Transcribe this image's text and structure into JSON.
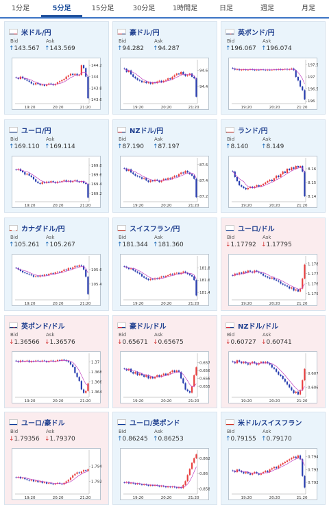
{
  "tabs": [
    {
      "label": "1分足",
      "active": false
    },
    {
      "label": "5分足",
      "active": true
    },
    {
      "label": "15分足",
      "active": false
    },
    {
      "label": "30分足",
      "active": false
    },
    {
      "label": "1時間足",
      "active": false
    },
    {
      "label": "日足",
      "active": false
    },
    {
      "label": "週足",
      "active": false
    },
    {
      "label": "月足",
      "active": false
    }
  ],
  "labels": {
    "bid": "Bid",
    "ask": "Ask"
  },
  "colors": {
    "up_bg": "#eaf4fb",
    "down_bg": "#fbecee",
    "bull": "#e84040",
    "bear": "#2a3fb0",
    "ma": "#c040c0",
    "name": "#1f3f8f"
  },
  "pairs": [
    {
      "name": "米ドル/円",
      "flag": "us",
      "dir": "up",
      "arrow": "↑",
      "bid": "143.567",
      "ask": "143.569",
      "chart_data": {
        "type": "candlestick",
        "x_ticks": [
          "19:20",
          "20:20",
          "21:20"
        ],
        "y_ticks": [
          "144.2",
          "144",
          "143.8",
          "143.6"
        ],
        "ylim": [
          143.55,
          144.25
        ],
        "closes": [
          143.98,
          143.96,
          144.0,
          143.97,
          143.95,
          143.93,
          143.91,
          143.88,
          143.86,
          143.89,
          143.87,
          143.85,
          143.86,
          143.84,
          143.86,
          143.88,
          143.87,
          143.85,
          143.87,
          143.9,
          143.92,
          143.94,
          143.96,
          144.0,
          144.02,
          144.05,
          144.03,
          144.05,
          144.02,
          144.03,
          144.2,
          144.15,
          144.0,
          143.62
        ]
      }
    },
    {
      "name": "豪ドル/円",
      "flag": "au",
      "dir": "up",
      "arrow": "↑",
      "bid": "94.282",
      "ask": "94.287",
      "chart_data": {
        "type": "candlestick",
        "x_ticks": [
          "19:20",
          "20:20",
          "21:20"
        ],
        "y_ticks": [
          "94.6",
          "94.4"
        ],
        "ylim": [
          94.2,
          94.7
        ],
        "closes": [
          94.62,
          94.58,
          94.6,
          94.55,
          94.52,
          94.5,
          94.48,
          94.47,
          94.45,
          94.46,
          94.44,
          94.45,
          94.43,
          94.45,
          94.44,
          94.46,
          94.47,
          94.45,
          94.47,
          94.48,
          94.5,
          94.49,
          94.52,
          94.54,
          94.56,
          94.55,
          94.58,
          94.55,
          94.53,
          94.54,
          94.56,
          94.52,
          94.5,
          94.27
        ]
      }
    },
    {
      "name": "英ポンド/円",
      "flag": "uk",
      "dir": "up",
      "arrow": "↑",
      "bid": "196.067",
      "ask": "196.074",
      "chart_data": {
        "type": "candlestick",
        "x_ticks": [
          "19:20",
          "20:20",
          "21:20"
        ],
        "y_ticks": [
          "197.5",
          "197",
          "196.5",
          "196"
        ],
        "ylim": [
          195.95,
          197.6
        ],
        "closes": [
          197.35,
          197.3,
          197.32,
          197.28,
          197.3,
          197.31,
          197.29,
          197.3,
          197.32,
          197.3,
          197.28,
          197.3,
          197.29,
          197.31,
          197.3,
          197.28,
          197.3,
          197.29,
          197.3,
          197.31,
          197.3,
          197.32,
          197.3,
          197.31,
          197.33,
          197.3,
          197.32,
          197.35,
          197.28,
          197.0,
          196.85,
          196.6,
          196.45,
          196.07
        ]
      }
    },
    {
      "name": "ユーロ/円",
      "flag": "eu",
      "dir": "up",
      "arrow": "↑",
      "bid": "169.110",
      "ask": "169.114",
      "chart_data": {
        "type": "candlestick",
        "x_ticks": [
          "19:20",
          "20:20",
          "21:20"
        ],
        "y_ticks": [
          "169.8",
          "169.6",
          "169.4",
          "169.2"
        ],
        "ylim": [
          169.05,
          169.9
        ],
        "closes": [
          169.7,
          169.72,
          169.68,
          169.65,
          169.6,
          169.62,
          169.58,
          169.55,
          169.5,
          169.45,
          169.42,
          169.4,
          169.44,
          169.42,
          169.45,
          169.43,
          169.46,
          169.44,
          169.42,
          169.45,
          169.44,
          169.46,
          169.48,
          169.45,
          169.47,
          169.44,
          169.46,
          169.48,
          169.45,
          169.44,
          169.46,
          169.42,
          169.4,
          169.11
        ]
      }
    },
    {
      "name": "NZドル/円",
      "flag": "nz",
      "dir": "up",
      "arrow": "↑",
      "bid": "87.190",
      "ask": "87.197",
      "chart_data": {
        "type": "candlestick",
        "x_ticks": [
          "19:20",
          "20:20",
          "21:20"
        ],
        "y_ticks": [
          "87.6",
          "87.4",
          "87.2"
        ],
        "ylim": [
          87.15,
          87.65
        ],
        "closes": [
          87.55,
          87.52,
          87.54,
          87.5,
          87.48,
          87.46,
          87.45,
          87.44,
          87.42,
          87.43,
          87.4,
          87.38,
          87.4,
          87.39,
          87.41,
          87.4,
          87.38,
          87.4,
          87.42,
          87.41,
          87.43,
          87.42,
          87.44,
          87.46,
          87.45,
          87.48,
          87.5,
          87.49,
          87.52,
          87.5,
          87.48,
          87.46,
          87.42,
          87.19
        ]
      }
    },
    {
      "name": "ランド/円",
      "flag": "za",
      "dir": "up",
      "arrow": "↑",
      "bid": "8.140",
      "ask": "8.149",
      "chart_data": {
        "type": "candlestick",
        "x_ticks": [
          "19:20",
          "20:20",
          "21:20"
        ],
        "y_ticks": [
          "8.16",
          "8.15",
          "8.14"
        ],
        "ylim": [
          8.137,
          8.166
        ],
        "closes": [
          8.158,
          8.154,
          8.151,
          8.148,
          8.147,
          8.146,
          8.145,
          8.146,
          8.147,
          8.146,
          8.147,
          8.148,
          8.147,
          8.148,
          8.149,
          8.15,
          8.151,
          8.152,
          8.151,
          8.153,
          8.155,
          8.154,
          8.156,
          8.158,
          8.157,
          8.16,
          8.159,
          8.161,
          8.16,
          8.162,
          8.161,
          8.162,
          8.158,
          8.14
        ]
      }
    },
    {
      "name": "カナダドル/円",
      "flag": "ca",
      "dir": "up",
      "arrow": "↑",
      "bid": "105.261",
      "ask": "105.267",
      "chart_data": {
        "type": "candlestick",
        "x_ticks": [
          "19:20",
          "20:20",
          "21:20"
        ],
        "y_ticks": [
          "105.6",
          "105.4"
        ],
        "ylim": [
          105.2,
          105.75
        ],
        "closes": [
          105.62,
          105.6,
          105.58,
          105.56,
          105.55,
          105.54,
          105.53,
          105.52,
          105.5,
          105.51,
          105.5,
          105.52,
          105.51,
          105.53,
          105.52,
          105.54,
          105.55,
          105.54,
          105.56,
          105.57,
          105.56,
          105.58,
          105.6,
          105.59,
          105.62,
          105.61,
          105.63,
          105.65,
          105.64,
          105.66,
          105.65,
          105.6,
          105.5,
          105.26
        ]
      }
    },
    {
      "name": "スイスフラン/円",
      "flag": "ch",
      "dir": "up",
      "arrow": "↑",
      "bid": "181.344",
      "ask": "181.360",
      "chart_data": {
        "type": "candlestick",
        "x_ticks": [
          "19:20",
          "20:20",
          "21:20"
        ],
        "y_ticks": [
          "181.8",
          "181.6",
          "181.4"
        ],
        "ylim": [
          181.3,
          181.95
        ],
        "closes": [
          181.82,
          181.8,
          181.78,
          181.79,
          181.76,
          181.74,
          181.72,
          181.7,
          181.66,
          181.64,
          181.62,
          181.6,
          181.62,
          181.61,
          181.63,
          181.62,
          181.64,
          181.66,
          181.65,
          181.67,
          181.68,
          181.7,
          181.69,
          181.71,
          181.72,
          181.7,
          181.72,
          181.74,
          181.72,
          181.7,
          181.68,
          181.66,
          181.6,
          181.35
        ]
      }
    },
    {
      "name": "ユーロ/ドル",
      "flag": "eu",
      "dir": "down",
      "arrow": "↓",
      "bid": "1.17792",
      "ask": "1.17795",
      "chart_data": {
        "type": "candlestick",
        "x_ticks": [
          "19:20",
          "20:20",
          "21:20"
        ],
        "y_ticks": [
          "1.178",
          "1.177",
          "1.176",
          "1.175"
        ],
        "ylim": [
          1.1745,
          1.1785
        ],
        "closes": [
          1.1768,
          1.177,
          1.1769,
          1.1771,
          1.177,
          1.1772,
          1.1771,
          1.1773,
          1.1772,
          1.1771,
          1.1773,
          1.1772,
          1.1771,
          1.177,
          1.1768,
          1.1767,
          1.1766,
          1.1765,
          1.1766,
          1.1764,
          1.1763,
          1.1762,
          1.176,
          1.1759,
          1.1758,
          1.1757,
          1.1755,
          1.1756,
          1.1753,
          1.1754,
          1.1752,
          1.1755,
          1.1765,
          1.1779
        ]
      }
    },
    {
      "name": "英ポンド/ドル",
      "flag": "uk",
      "dir": "down",
      "arrow": "↓",
      "bid": "1.36566",
      "ask": "1.36576",
      "chart_data": {
        "type": "candlestick",
        "x_ticks": [
          "19:20",
          "20:20",
          "21:20"
        ],
        "y_ticks": [
          "1.37",
          "1.368",
          "1.366",
          "1.364"
        ],
        "ylim": [
          1.3632,
          1.3712
        ],
        "closes": [
          1.3702,
          1.37,
          1.3703,
          1.3701,
          1.3702,
          1.3703,
          1.37,
          1.3702,
          1.3701,
          1.3703,
          1.3702,
          1.3701,
          1.3703,
          1.3702,
          1.37,
          1.3702,
          1.3703,
          1.3701,
          1.3702,
          1.3704,
          1.3703,
          1.3705,
          1.3704,
          1.3702,
          1.37,
          1.3695,
          1.369,
          1.3678,
          1.367,
          1.3662,
          1.3645,
          1.3638,
          1.3642,
          1.3657
        ]
      }
    },
    {
      "name": "豪ドル/ドル",
      "flag": "au",
      "dir": "down",
      "arrow": "↓",
      "bid": "0.65671",
      "ask": "0.65675",
      "chart_data": {
        "type": "candlestick",
        "x_ticks": [
          "19:20",
          "20:20",
          "21:20"
        ],
        "y_ticks": [
          "0.657",
          "0.6565",
          "0.656",
          "0.6555"
        ],
        "ylim": [
          0.6549,
          0.6574
        ],
        "closes": [
          0.6566,
          0.6565,
          0.6566,
          0.6564,
          0.6563,
          0.6564,
          0.6562,
          0.6563,
          0.6562,
          0.6561,
          0.6562,
          0.656,
          0.6561,
          0.656,
          0.6561,
          0.6562,
          0.6561,
          0.6562,
          0.6563,
          0.6562,
          0.6563,
          0.6564,
          0.6565,
          0.6564,
          0.6565,
          0.6564,
          0.656,
          0.6557,
          0.6553,
          0.6552,
          0.6551,
          0.6555,
          0.6562,
          0.6567
        ]
      }
    },
    {
      "name": "NZドル/ドル",
      "flag": "nz",
      "dir": "down",
      "arrow": "↓",
      "bid": "0.60727",
      "ask": "0.60741",
      "chart_data": {
        "type": "candlestick",
        "x_ticks": [
          "19:20",
          "20:20",
          "21:20"
        ],
        "y_ticks": [
          "0.607",
          "0.606"
        ],
        "ylim": [
          0.6054,
          0.6082
        ],
        "closes": [
          0.6078,
          0.6077,
          0.6079,
          0.6078,
          0.6077,
          0.6078,
          0.6077,
          0.6076,
          0.6077,
          0.6078,
          0.6077,
          0.6076,
          0.6077,
          0.6078,
          0.6077,
          0.6078,
          0.6077,
          0.6076,
          0.6074,
          0.6073,
          0.6071,
          0.6069,
          0.6068,
          0.6066,
          0.6064,
          0.6062,
          0.606,
          0.6058,
          0.6056,
          0.6057,
          0.6055,
          0.6058,
          0.6065,
          0.6073
        ]
      }
    },
    {
      "name": "ユーロ/豪ドル",
      "flag": "eu",
      "dir": "down",
      "arrow": "↓",
      "bid": "1.79356",
      "ask": "1.79370",
      "chart_data": {
        "type": "candlestick",
        "x_ticks": [
          "19:20",
          "20:20",
          "21:20"
        ],
        "y_ticks": [
          "1.794",
          "1.792"
        ],
        "ylim": [
          1.7905,
          1.7958
        ],
        "closes": [
          1.7925,
          1.7926,
          1.7924,
          1.7925,
          1.7923,
          1.7922,
          1.7921,
          1.7922,
          1.792,
          1.7921,
          1.7919,
          1.792,
          1.7918,
          1.7919,
          1.7917,
          1.7918,
          1.7917,
          1.7916,
          1.7917,
          1.7918,
          1.7917,
          1.7916,
          1.7918,
          1.792,
          1.7922,
          1.7925,
          1.7928,
          1.793,
          1.7932,
          1.7931,
          1.7933,
          1.7935,
          1.7934,
          1.7936
        ]
      }
    },
    {
      "name": "ユーロ/英ポンド",
      "flag": "eu",
      "dir": "up",
      "arrow": "↑",
      "bid": "0.86245",
      "ask": "0.86253",
      "chart_data": {
        "type": "candlestick",
        "x_ticks": [
          "19:20",
          "20:20",
          "21:20"
        ],
        "y_ticks": [
          "0.862",
          "0.86",
          "0.858"
        ],
        "ylim": [
          0.8575,
          0.8627
        ],
        "closes": [
          0.8588,
          0.8589,
          0.8587,
          0.8588,
          0.8587,
          0.8586,
          0.8587,
          0.8586,
          0.8585,
          0.8586,
          0.8585,
          0.8584,
          0.8585,
          0.8584,
          0.8585,
          0.8584,
          0.8583,
          0.8584,
          0.8583,
          0.8582,
          0.8583,
          0.8582,
          0.8583,
          0.8582,
          0.8581,
          0.8582,
          0.8581,
          0.8585,
          0.859,
          0.8598,
          0.8606,
          0.8614,
          0.862,
          0.8625
        ]
      }
    },
    {
      "name": "米ドル/スイスフラン",
      "flag": "ch",
      "dir": "up",
      "arrow": "↑",
      "bid": "0.79155",
      "ask": "0.79170",
      "chart_data": {
        "type": "candlestick",
        "x_ticks": [
          "19:20",
          "20:20",
          "21:20"
        ],
        "y_ticks": [
          "0.794",
          "0.793",
          "0.792"
        ],
        "ylim": [
          0.7912,
          0.7943
        ],
        "closes": [
          0.7929,
          0.7928,
          0.793,
          0.7929,
          0.7928,
          0.7927,
          0.7928,
          0.7927,
          0.7926,
          0.7927,
          0.7928,
          0.7927,
          0.7926,
          0.7927,
          0.7928,
          0.7929,
          0.7928,
          0.793,
          0.7931,
          0.7932,
          0.7931,
          0.7933,
          0.7934,
          0.7935,
          0.7936,
          0.7937,
          0.7938,
          0.7939,
          0.794,
          0.7939,
          0.7941,
          0.7938,
          0.7925,
          0.7916
        ]
      }
    }
  ]
}
